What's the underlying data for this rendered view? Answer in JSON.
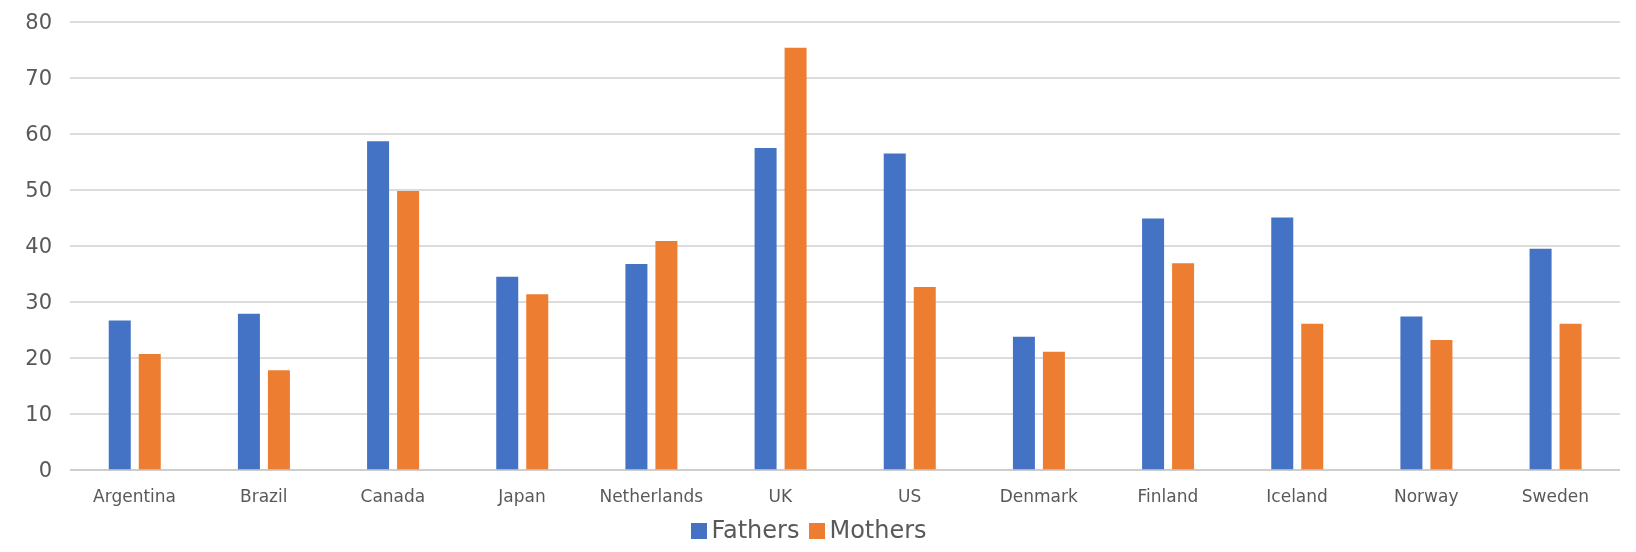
{
  "chart_data": {
    "type": "bar",
    "categories": [
      "Argentina",
      "Brazil",
      "Canada",
      "Japan",
      "Netherlands",
      "UK",
      "US",
      "Denmark",
      "Finland",
      "Iceland",
      "Norway",
      "Sweden"
    ],
    "series": [
      {
        "name": "Fathers",
        "color": "#4472c4",
        "values": [
          26.7,
          27.9,
          58.7,
          34.5,
          36.8,
          57.5,
          56.5,
          23.8,
          44.9,
          45.1,
          27.4,
          39.5
        ]
      },
      {
        "name": "Mothers",
        "color": "#ed7d31",
        "values": [
          20.7,
          17.8,
          49.8,
          31.4,
          40.9,
          75.4,
          32.7,
          21.1,
          36.9,
          26.1,
          23.2,
          26.1
        ]
      }
    ],
    "ylim": [
      0,
      80
    ],
    "yticks": [
      0,
      10,
      20,
      30,
      40,
      50,
      60,
      70,
      80
    ],
    "grid": "y",
    "legend": "bottom"
  }
}
